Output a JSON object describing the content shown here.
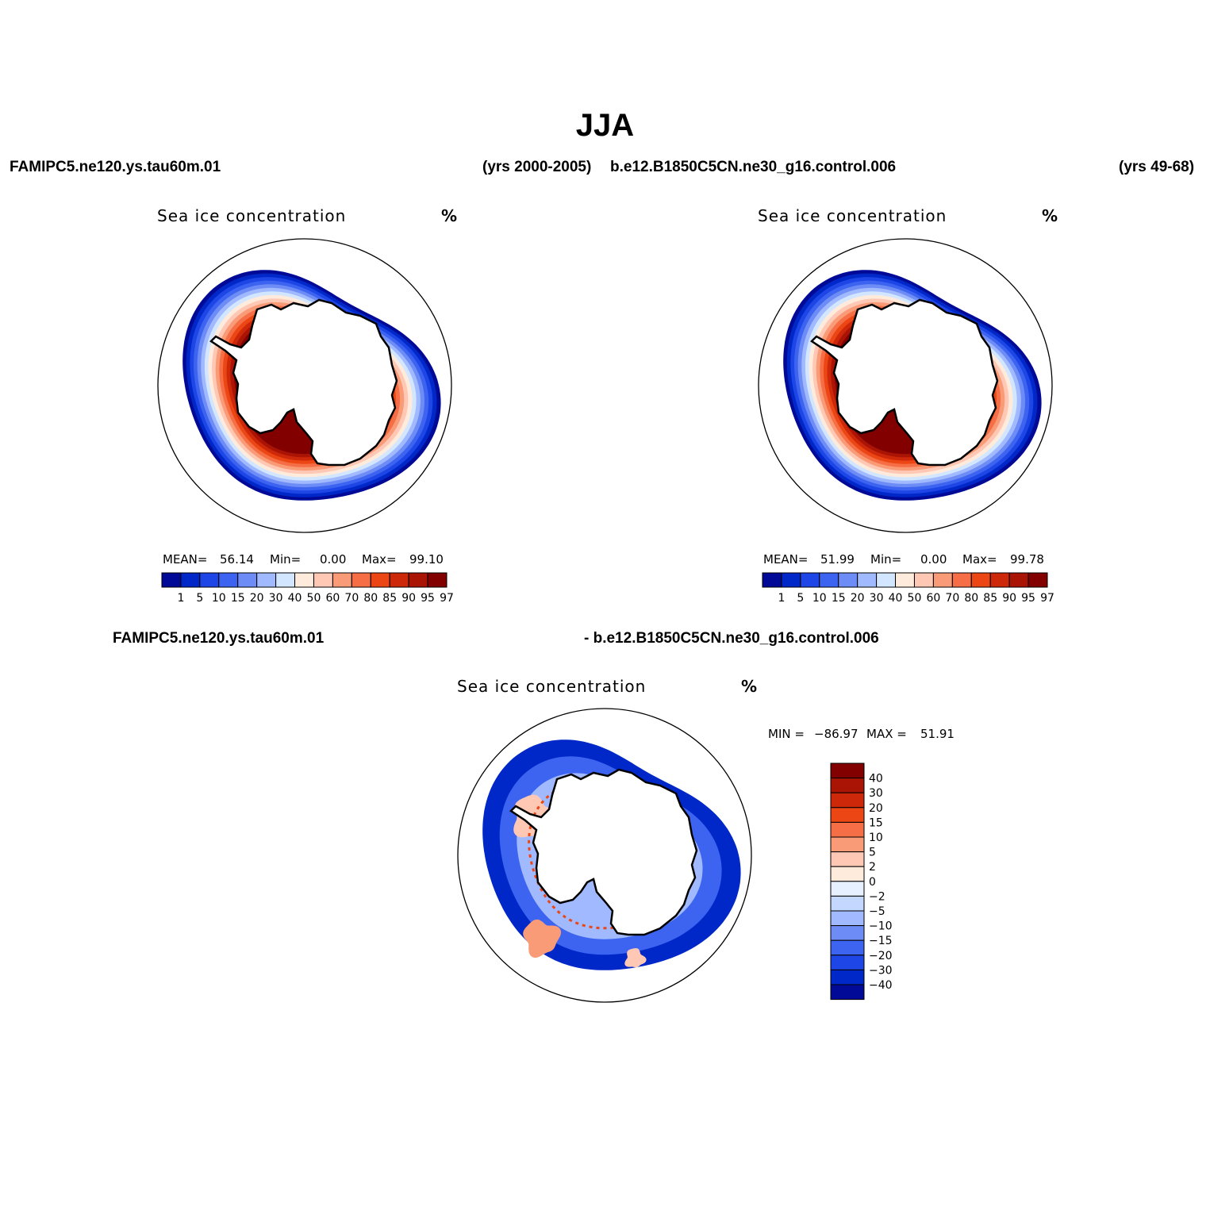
{
  "figure": {
    "title": "JJA",
    "case1": {
      "name": "FAMIPC5.ne120.ys.tau60m.01",
      "years": "(yrs 2000-2005)"
    },
    "case2": {
      "name": "b.e12.B1850C5CN.ne30_g16.control.006",
      "years": "(yrs 49-68)"
    },
    "diff_left": "FAMIPC5.ne120.ys.tau60m.01",
    "diff_right": "- b.e12.B1850C5CN.ne30_g16.control.006"
  },
  "colors": {
    "abs_palette": [
      "#000a96",
      "#0028c8",
      "#1e46e6",
      "#3c64f0",
      "#6e8cf5",
      "#a0b9ff",
      "#d2e6ff",
      "#ffebdc",
      "#ffc8b4",
      "#fa9b78",
      "#f56e46",
      "#eb4614",
      "#cd280a",
      "#aa1405",
      "#820000"
    ],
    "diff_palette": [
      "#000a96",
      "#0028c8",
      "#1e46e6",
      "#3c64f0",
      "#6e8cf5",
      "#a0b9ff",
      "#c3d7ff",
      "#e6f0ff",
      "#ffebdc",
      "#ffc8b4",
      "#fa9b78",
      "#f56e46",
      "#eb4614",
      "#cd280a",
      "#aa1405",
      "#820000"
    ]
  },
  "chart_data": [
    {
      "type": "heatmap",
      "projection": "south-polar-stereographic",
      "variable": "Sea ice concentration",
      "units": "%",
      "case": "FAMIPC5.ne120.ys.tau60m.01",
      "years": "(yrs 2000-2005)",
      "stats": {
        "mean_label": "MEAN=",
        "mean": "56.14",
        "min_label": "Min=",
        "min": "0.00",
        "max_label": "Max=",
        "max": "99.10"
      },
      "contour_levels": [
        "1",
        "5",
        "10",
        "15",
        "20",
        "30",
        "40",
        "50",
        "60",
        "70",
        "80",
        "85",
        "90",
        "95",
        "97"
      ],
      "legend_position": "bottom"
    },
    {
      "type": "heatmap",
      "projection": "south-polar-stereographic",
      "variable": "Sea ice concentration",
      "units": "%",
      "case": "b.e12.B1850C5CN.ne30_g16.control.006",
      "years": "(yrs 49-68)",
      "stats": {
        "mean_label": "MEAN=",
        "mean": "51.99",
        "min_label": "Min=",
        "min": "0.00",
        "max_label": "Max=",
        "max": "99.78"
      },
      "contour_levels": [
        "1",
        "5",
        "10",
        "15",
        "20",
        "30",
        "40",
        "50",
        "60",
        "70",
        "80",
        "85",
        "90",
        "95",
        "97"
      ],
      "legend_position": "bottom"
    },
    {
      "type": "heatmap",
      "projection": "south-polar-stereographic",
      "variable": "Sea ice concentration",
      "units": "%",
      "case": "difference",
      "stats": {
        "min_label": "MIN =",
        "min": "−86.97",
        "max_label": "MAX =",
        "max": "51.91"
      },
      "contour_levels": [
        "40",
        "30",
        "20",
        "15",
        "10",
        "5",
        "2",
        "0",
        "−2",
        "−5",
        "−10",
        "−15",
        "−20",
        "−30",
        "−40"
      ],
      "legend_position": "right"
    }
  ]
}
